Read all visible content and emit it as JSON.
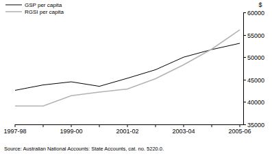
{
  "chart_data": {
    "type": "line",
    "y_label": "$",
    "source": "Source: Australian National Accounts: State Accounts, cat. no. 5220.0.",
    "categories": [
      "1997-98",
      null,
      "1999-00",
      null,
      "2001-02",
      null,
      "2003-04",
      null,
      "2005-06"
    ],
    "series": [
      {
        "name": "GSP per capita",
        "color": "#000000",
        "values": [
          42600,
          43800,
          44500,
          43500,
          45300,
          47200,
          50000,
          51700,
          53100
        ]
      },
      {
        "name": "RGSI per capita",
        "color": "#b3b3b3",
        "values": [
          39100,
          39100,
          41400,
          42200,
          42900,
          45200,
          48300,
          51800,
          56100
        ]
      }
    ],
    "ylim": [
      35000,
      60000
    ],
    "yticks": [
      35000,
      40000,
      45000,
      50000,
      55000,
      60000
    ],
    "grid": false,
    "legend": "upper left"
  }
}
